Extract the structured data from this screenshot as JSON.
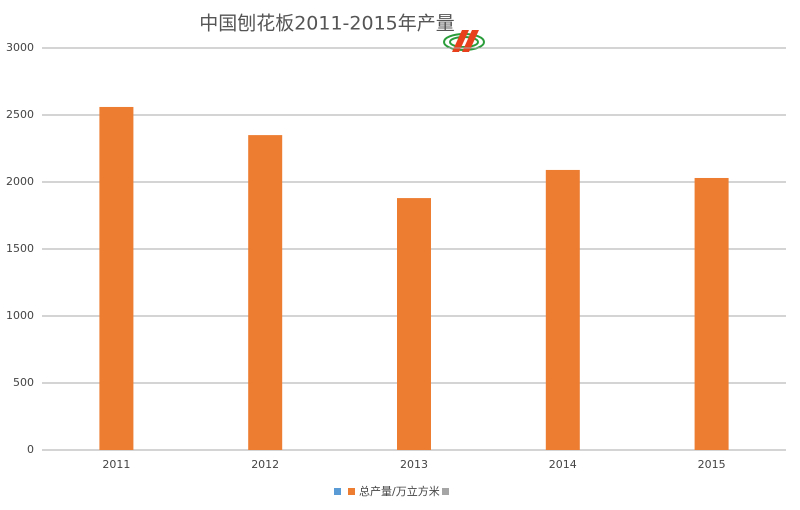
{
  "chart_data": {
    "type": "bar",
    "title": "中国刨花板2011-2015年产量",
    "categories": [
      "2011",
      "2012",
      "2013",
      "2014",
      "2015"
    ],
    "series": [
      {
        "name": "总产量/万立方米",
        "color": "#ed7d31",
        "values": [
          2560,
          2350,
          1880,
          2090,
          2030
        ]
      }
    ],
    "ylim": [
      0,
      3000
    ],
    "yticks": [
      0,
      500,
      1000,
      1500,
      2000,
      2500,
      3000
    ],
    "grid": true
  }
}
